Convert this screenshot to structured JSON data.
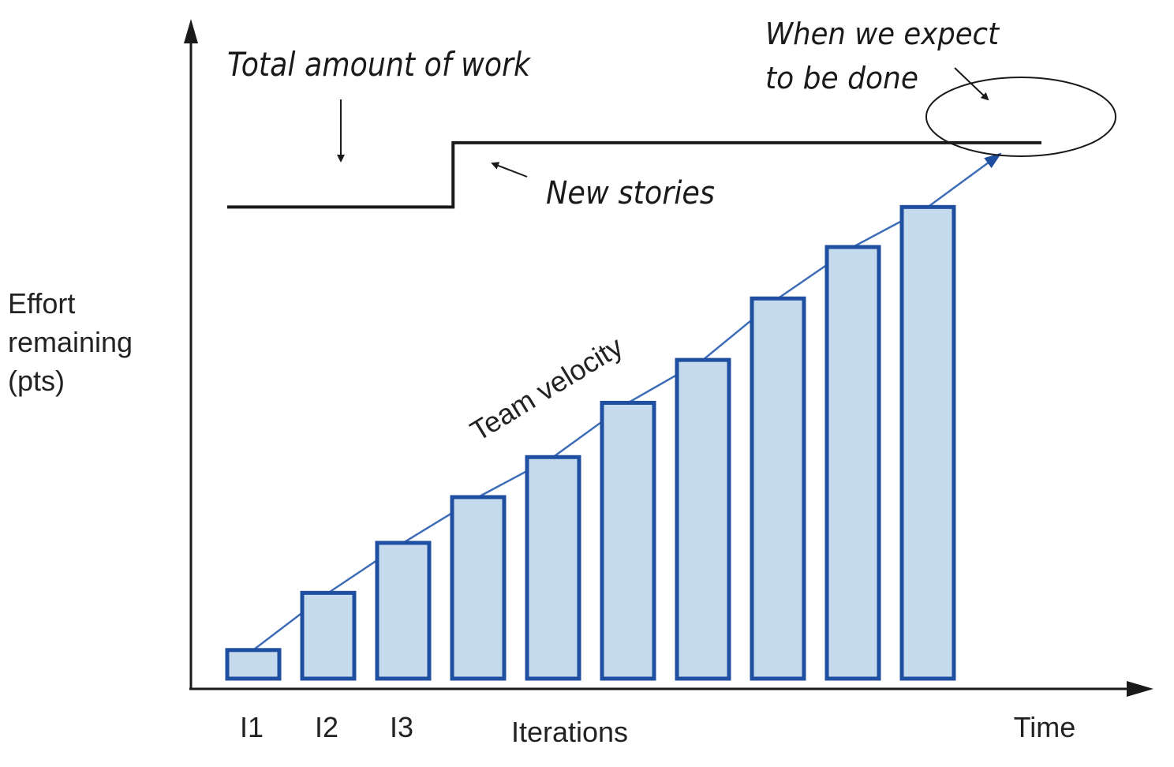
{
  "chart_data": {
    "type": "bar",
    "categories": [
      "I1",
      "I2",
      "I3",
      "",
      "",
      "",
      "",
      "",
      "",
      ""
    ],
    "values": [
      2,
      6,
      9.5,
      12.7,
      15.5,
      19.3,
      22.3,
      26.6,
      30.2,
      33
    ],
    "total_work": {
      "before": 33,
      "after": 37.5,
      "step_at_iteration": 4
    },
    "xlabel": "Iterations",
    "x_axis_end_label": "Time",
    "ylabel_lines": [
      "Effort",
      "remaining",
      "(pts)"
    ],
    "ylim": [
      0,
      45
    ],
    "grid": false,
    "annotations": {
      "total_work": "Total amount of work",
      "new_stories": "New stories",
      "velocity": "Team velocity",
      "done_line1": "When we expect",
      "done_line2": "to be done"
    },
    "colors": {
      "bar_fill": "#c6daee",
      "bar_stroke": "#1f4fa0",
      "velocity": "#3e6db8",
      "ink": "#1a1a1a"
    }
  }
}
